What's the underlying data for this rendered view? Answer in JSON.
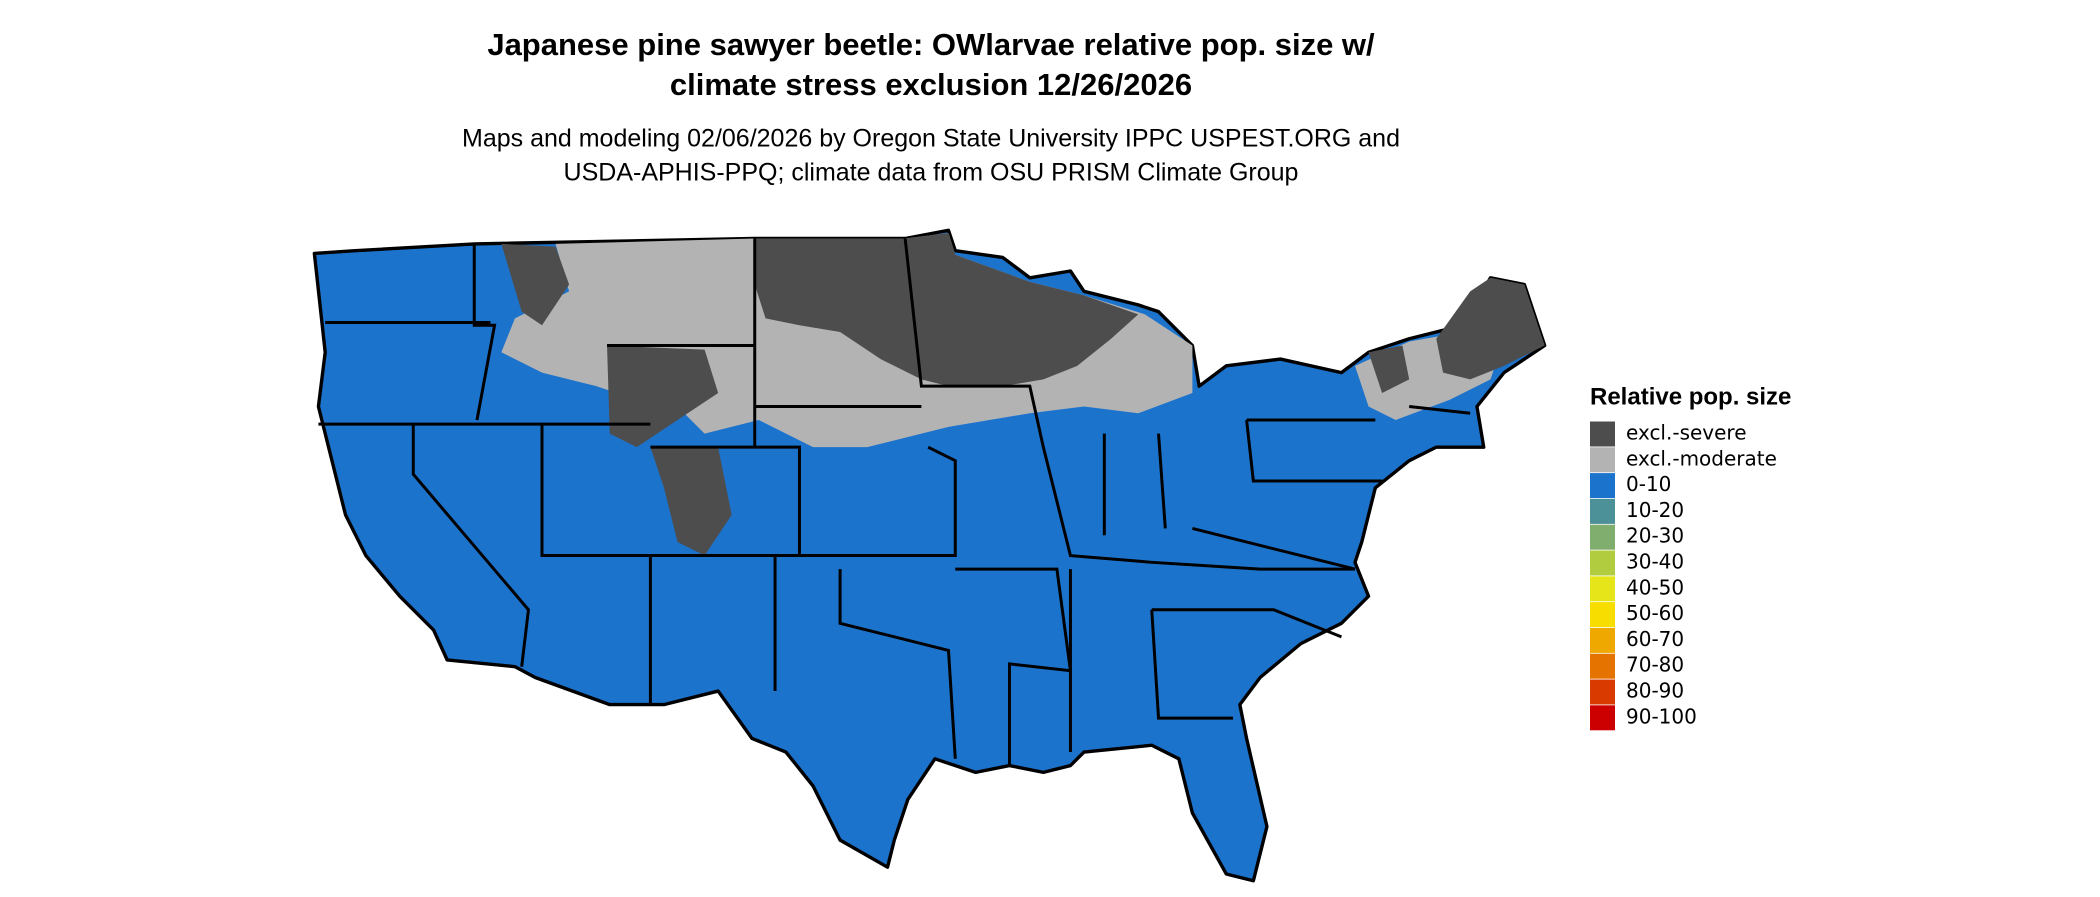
{
  "header": {
    "title_lines": [
      "Japanese pine sawyer beetle: OWlarvae relative pop. size w/",
      "climate stress exclusion 12/26/2026"
    ],
    "subtitle_lines": [
      "Maps and modeling 02/06/2026 by Oregon State University IPPC USPEST.ORG and",
      "USDA-APHIS-PPQ; climate data from OSU PRISM Climate Group"
    ]
  },
  "legend": {
    "title": "Relative pop. size",
    "items": [
      {
        "label": "excl.-severe",
        "color": "#4d4d4d"
      },
      {
        "label": "excl.-moderate",
        "color": "#b3b3b3"
      },
      {
        "label": "0-10",
        "color": "#1c73cc"
      },
      {
        "label": "10-20",
        "color": "#4c9098"
      },
      {
        "label": "20-30",
        "color": "#7fae6e"
      },
      {
        "label": "30-40",
        "color": "#b2cc3f"
      },
      {
        "label": "40-50",
        "color": "#e5e51a"
      },
      {
        "label": "50-60",
        "color": "#f7de00"
      },
      {
        "label": "60-70",
        "color": "#efa800"
      },
      {
        "label": "70-80",
        "color": "#e57300"
      },
      {
        "label": "80-90",
        "color": "#d93a00"
      },
      {
        "label": "90-100",
        "color": "#cc0000"
      }
    ]
  }
}
